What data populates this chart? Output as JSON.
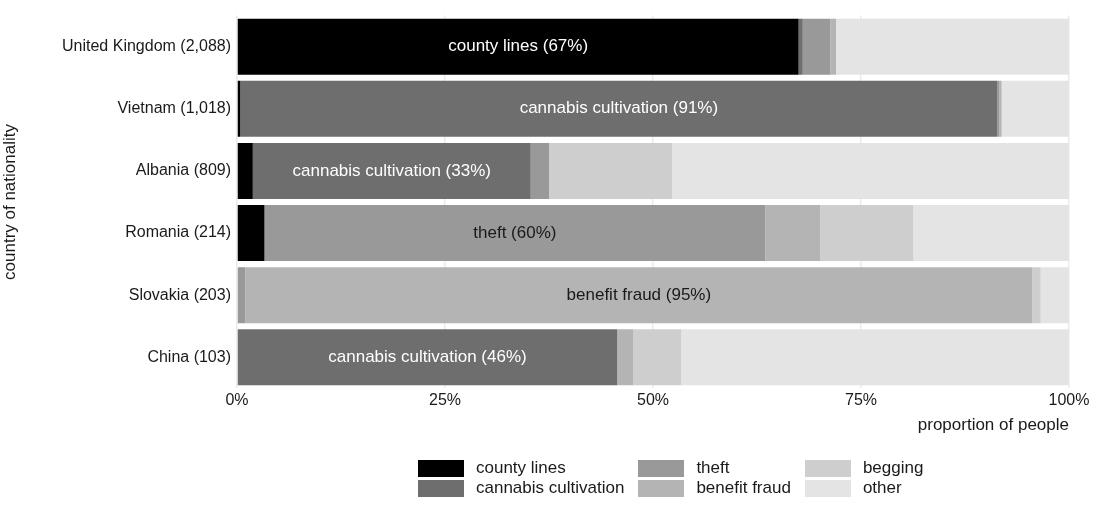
{
  "chart_data": {
    "type": "bar",
    "orientation": "horizontal",
    "stacked": true,
    "xlabel": "proportion of people",
    "ylabel": "country of nationality",
    "categories": [
      "United Kingdom (2,088)",
      "Vietnam (1,018)",
      "Albania (809)",
      "Romania (214)",
      "Slovakia (203)",
      "China (103)"
    ],
    "series": [
      {
        "name": "county lines",
        "color": "#000000",
        "values": [
          67.5,
          0.4,
          1.9,
          3.3,
          0,
          0
        ],
        "value_labels": [
          "county lines (67%)",
          null,
          null,
          null,
          null,
          null
        ]
      },
      {
        "name": "cannabis cultivation",
        "color": "#6e6e6e",
        "values": [
          0.5,
          91.0,
          33.4,
          0,
          0,
          45.7
        ],
        "value_labels": [
          null,
          "cannabis cultivation (91%)",
          "cannabis cultivation (33%)",
          null,
          null,
          "cannabis cultivation (46%)"
        ]
      },
      {
        "name": "theft",
        "color": "#999999",
        "values": [
          3.3,
          0.2,
          2.2,
          60.2,
          1.0,
          0
        ],
        "value_labels": [
          null,
          null,
          null,
          "theft (60%)",
          null,
          null
        ]
      },
      {
        "name": "benefit fraud",
        "color": "#b4b4b4",
        "values": [
          0.7,
          0.3,
          0,
          6.6,
          94.6,
          1.9
        ],
        "value_labels": [
          null,
          null,
          null,
          null,
          "benefit fraud (95%)",
          null
        ]
      },
      {
        "name": "begging",
        "color": "#cecece",
        "values": [
          0,
          0,
          14.8,
          11.2,
          1.0,
          5.8
        ]
      },
      {
        "name": "other",
        "color": "#e4e4e4",
        "values": [
          28.0,
          8.1,
          47.7,
          18.7,
          3.4,
          46.6
        ]
      }
    ],
    "xlim": [
      0,
      100
    ],
    "xticks": [
      {
        "value": 0,
        "label": "0%"
      },
      {
        "value": 25,
        "label": "25%"
      },
      {
        "value": 50,
        "label": "50%"
      },
      {
        "value": 75,
        "label": "75%"
      },
      {
        "value": 100,
        "label": "100%"
      }
    ],
    "grid": "x",
    "legend": "bottom"
  }
}
